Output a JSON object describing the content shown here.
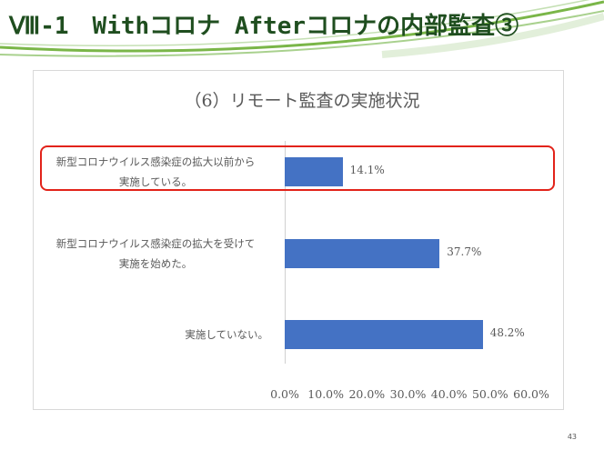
{
  "slide": {
    "title": "Ⅷ-1　Withコロナ Afterコロナの内部監査③",
    "page_number": "43"
  },
  "colors": {
    "bar": "#4472c4",
    "highlight": "#e2231a",
    "title_text": "#1f4e1f",
    "deco_green": "#7ab648"
  },
  "chart_data": {
    "type": "bar",
    "orientation": "horizontal",
    "title": "（6）リモート監査の実施状況",
    "categories": [
      [
        "新型コロナウイルス感染症の拡大以前から",
        "実施している。"
      ],
      [
        "新型コロナウイルス感染症の拡大を受けて",
        "実施を始めた。"
      ],
      [
        "実施していない。"
      ]
    ],
    "values": [
      14.1,
      37.7,
      48.2
    ],
    "value_labels": [
      "14.1%",
      "37.7%",
      "48.2%"
    ],
    "xlim": [
      0,
      60
    ],
    "xticks": [
      "0.0%",
      "10.0%",
      "20.0%",
      "30.0%",
      "40.0%",
      "50.0%",
      "60.0%"
    ],
    "grid": false,
    "legend": "none",
    "highlighted_category_index": 0
  }
}
